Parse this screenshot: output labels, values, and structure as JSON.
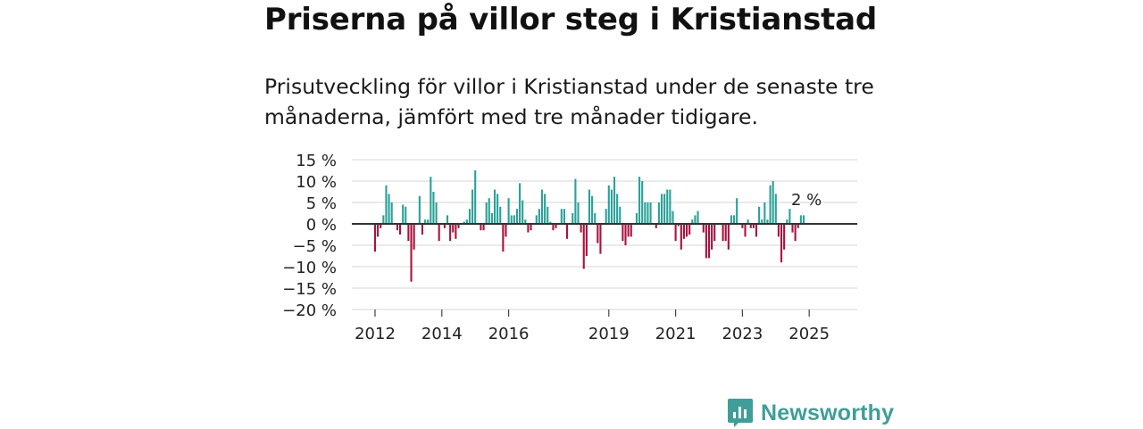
{
  "header": {
    "title": "Priserna på villor steg i Kristianstad",
    "subtitle": "Prisutveckling för villor i Kristianstad under de senaste tre månaderna, jämfört med tre månader tidigare."
  },
  "brand": {
    "name": "Newsworthy"
  },
  "colors": {
    "positive": "#2aa198",
    "negative": "#a8123e",
    "zero_line": "#333333",
    "grid": "#dddddd",
    "brand": "#3f9e98"
  },
  "chart_data": {
    "type": "bar",
    "title": "Priserna på villor steg i Kristianstad",
    "ylabel": "",
    "xlabel": "",
    "ylim": [
      -20,
      15
    ],
    "yticks": [
      15,
      10,
      5,
      0,
      -5,
      -10,
      -15,
      -20
    ],
    "ytick_labels": [
      "15 %",
      "10 %",
      "5 %",
      "0 %",
      "−5 %",
      "−10 %",
      "−15 %",
      "−20 %"
    ],
    "xticks": [
      2012,
      2014,
      2016,
      2019,
      2021,
      2023,
      2025
    ],
    "xtick_labels": [
      "2012",
      "2014",
      "2016",
      "2019",
      "2021",
      "2023",
      "2025"
    ],
    "start": {
      "year": 2012,
      "month": 1
    },
    "annotation": "2 %",
    "values": [
      -6.5,
      -3,
      -1,
      2,
      9,
      7,
      5,
      0,
      -1.5,
      -2.5,
      4.5,
      4,
      -4,
      -13.5,
      -6,
      0,
      6.5,
      -2.5,
      1,
      1,
      11,
      7.5,
      5,
      -4,
      0,
      -1,
      2,
      -4,
      -2,
      -3.5,
      -1,
      0,
      0.5,
      1,
      3.5,
      8,
      12.5,
      0,
      -1.5,
      -1.5,
      5,
      6,
      2.5,
      8,
      7,
      4,
      -6.5,
      -3,
      6,
      2,
      2,
      3.5,
      9.5,
      5.5,
      1,
      -2,
      -1.5,
      0,
      2,
      3.5,
      8,
      7,
      4,
      0.5,
      -1.5,
      -1,
      0,
      3.5,
      3.5,
      -3.5,
      0,
      2.5,
      10.5,
      5,
      -2,
      -10.5,
      -7.5,
      8,
      6.5,
      2.5,
      -4.5,
      -7,
      0,
      3.5,
      9,
      8,
      11,
      7,
      4,
      -4,
      -5,
      -3,
      -3,
      0,
      2.5,
      11,
      10,
      5,
      5,
      5,
      0,
      -1,
      5,
      7,
      7,
      8,
      8,
      3,
      -4,
      -0.5,
      -6,
      -3.5,
      -3,
      -2.5,
      1,
      2,
      3,
      0,
      -2,
      -8,
      -8,
      -6,
      -4,
      0,
      0,
      -4,
      -4,
      -6,
      2,
      2,
      6,
      0,
      -1,
      -3,
      1,
      -1,
      -1,
      -3,
      4,
      1,
      5,
      1,
      9,
      10,
      7,
      -3,
      -9,
      -6,
      1,
      3.5,
      -2,
      -4,
      -1,
      2,
      2
    ]
  }
}
